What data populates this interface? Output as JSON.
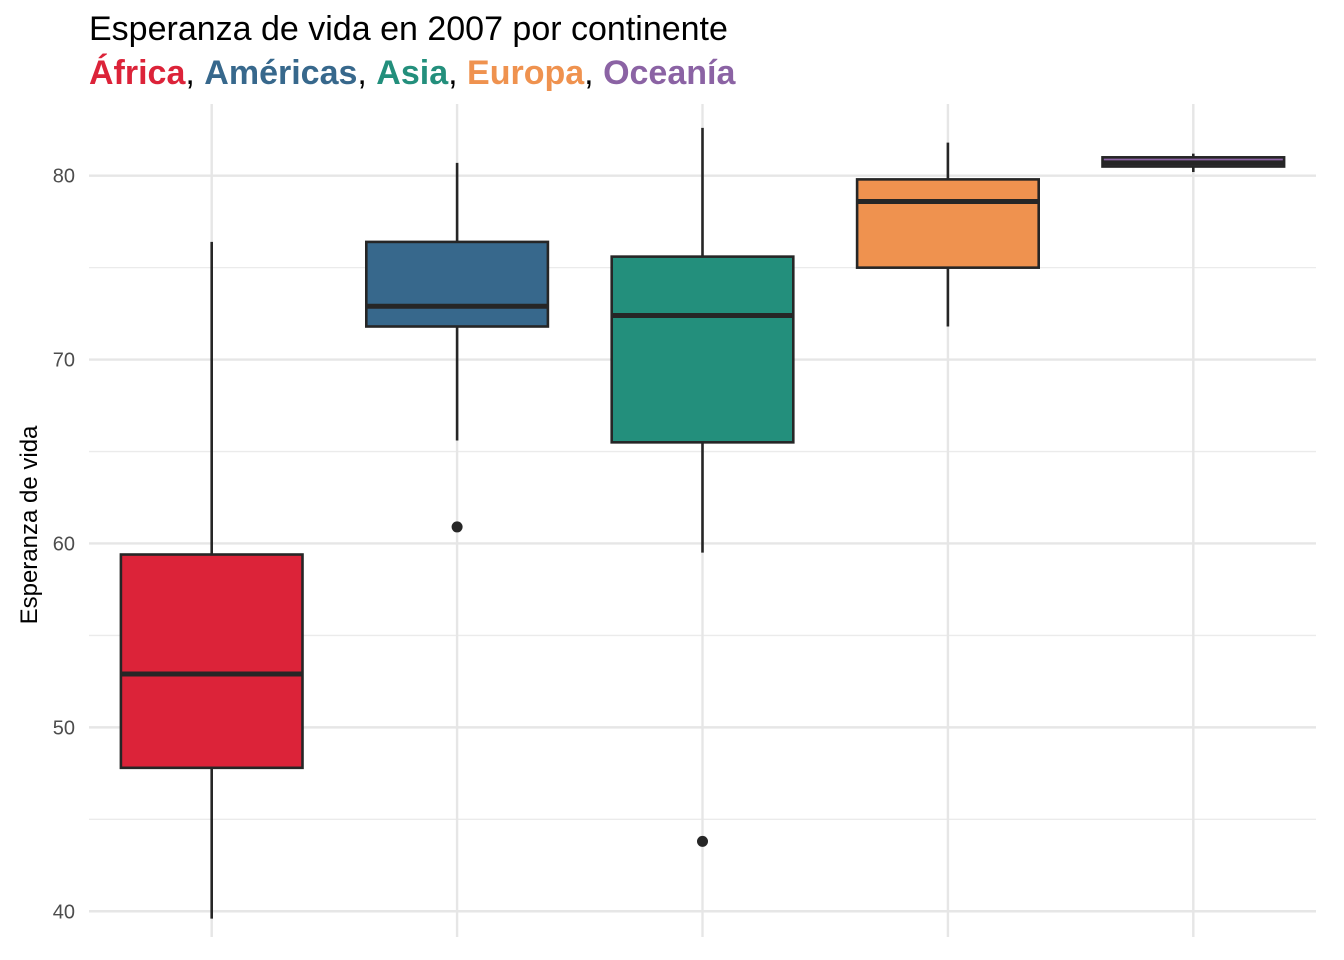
{
  "chart_data": {
    "type": "boxplot",
    "title": "Esperanza de vida en 2007 por continente",
    "subtitle_parts": [
      {
        "text": "África",
        "color": "#dc2339"
      },
      {
        "text": "Américas",
        "color": "#37688c"
      },
      {
        "text": "Asia",
        "color": "#238f7c"
      },
      {
        "text": "Europa",
        "color": "#ef924f"
      },
      {
        "text": "Oceanía",
        "color": "#8b63a4"
      }
    ],
    "subtitle_separator": ", ",
    "ylabel": "Esperanza de vida",
    "xlabel": "",
    "ylim": [
      38.6,
      83.9
    ],
    "yticks": [
      40,
      50,
      60,
      70,
      80
    ],
    "grid": true,
    "legend": "none",
    "categories": [
      "África",
      "Américas",
      "Asia",
      "Europa",
      "Oceanía"
    ],
    "boxes": [
      {
        "category": "África",
        "color": "#dc2339",
        "whisker_low": 39.6,
        "q1": 47.8,
        "median": 52.9,
        "q3": 59.4,
        "whisker_high": 76.4,
        "outliers": []
      },
      {
        "category": "Américas",
        "color": "#37688c",
        "whisker_low": 65.6,
        "q1": 71.8,
        "median": 72.9,
        "q3": 76.4,
        "whisker_high": 80.7,
        "outliers": [
          60.9
        ]
      },
      {
        "category": "Asia",
        "color": "#238f7c",
        "whisker_low": 59.5,
        "q1": 65.5,
        "median": 72.4,
        "q3": 75.6,
        "whisker_high": 82.6,
        "outliers": [
          43.8
        ]
      },
      {
        "category": "Europa",
        "color": "#ef924f",
        "whisker_low": 71.8,
        "q1": 75.0,
        "median": 78.6,
        "q3": 79.8,
        "whisker_high": 81.8,
        "outliers": []
      },
      {
        "category": "Oceanía",
        "color": "#8b63a4",
        "whisker_low": 80.2,
        "q1": 80.5,
        "median": 80.7,
        "q3": 81.0,
        "whisker_high": 81.2,
        "outliers": []
      }
    ]
  }
}
